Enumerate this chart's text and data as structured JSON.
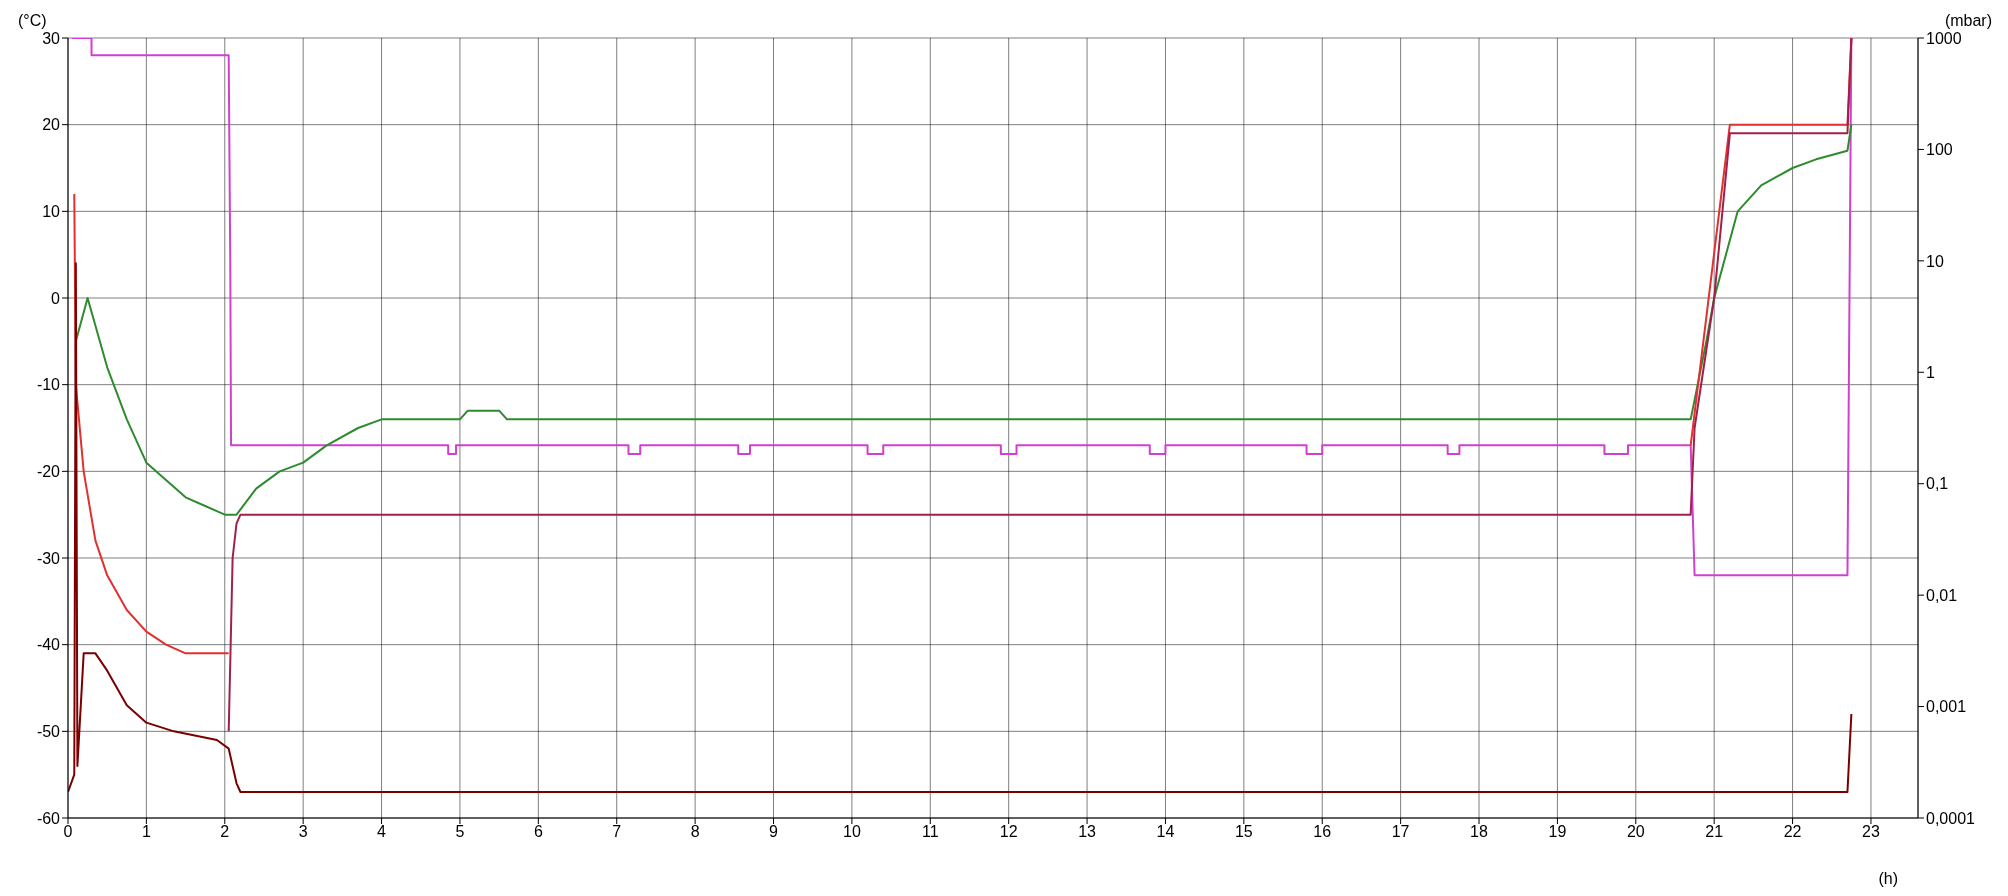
{
  "chart_data": {
    "type": "line",
    "ylabel": "(°C)",
    "y2label": "(mbar)",
    "xlabel": "(h)",
    "xlim": [
      0,
      23.6
    ],
    "xticks": [
      0,
      1,
      2,
      3,
      4,
      5,
      6,
      7,
      8,
      9,
      10,
      11,
      12,
      13,
      14,
      15,
      16,
      17,
      18,
      19,
      20,
      21,
      22,
      23
    ],
    "ylim": [
      -60,
      30
    ],
    "yticks": [
      -60,
      -50,
      -40,
      -30,
      -20,
      -10,
      0,
      10,
      20,
      30
    ],
    "y2lim": [
      0.0001,
      1000
    ],
    "y2ticks": [
      {
        "value": 0.0001,
        "label": "0,0001"
      },
      {
        "value": 0.001,
        "label": "0,001"
      },
      {
        "value": 0.01,
        "label": "0,01"
      },
      {
        "value": 0.1,
        "label": "0,1"
      },
      1,
      10,
      100,
      1000
    ],
    "log": "y2",
    "grid": true,
    "legend": false,
    "marker": "none",
    "line_style": "solid",
    "series": [
      {
        "color": "#d040d0",
        "x": [
          0.05,
          0.3,
          0.3,
          2.05,
          2.07,
          2.08,
          4.0,
          4.0,
          4.85,
          4.85,
          4.95,
          4.95,
          7.15,
          7.15,
          7.3,
          7.3,
          8.55,
          8.55,
          8.7,
          8.7,
          10.2,
          10.2,
          10.4,
          10.4,
          11.9,
          11.9,
          12.1,
          12.1,
          13.8,
          13.8,
          14.0,
          14.0,
          15.8,
          15.8,
          16.0,
          16.0,
          17.6,
          17.6,
          17.75,
          17.75,
          19.6,
          19.6,
          19.9,
          19.9,
          20.7,
          20.75,
          22.7,
          22.75
        ],
        "values": [
          30,
          30,
          28,
          28,
          4,
          -17,
          -17,
          -17,
          -17,
          -18,
          -18,
          -17,
          -17,
          -18,
          -18,
          -17,
          -17,
          -18,
          -18,
          -17,
          -17,
          -18,
          -18,
          -17,
          -17,
          -18,
          -18,
          -17,
          -17,
          -18,
          -18,
          -17,
          -17,
          -18,
          -18,
          -17,
          -17,
          -18,
          -18,
          -17,
          -17,
          -18,
          -18,
          -17,
          -17,
          -32,
          -32,
          30
        ]
      },
      {
        "color": "#2e8b2e",
        "x": [
          0.1,
          0.25,
          0.5,
          0.75,
          1.0,
          1.25,
          1.5,
          1.75,
          2.0,
          2.15,
          2.4,
          2.7,
          3.0,
          3.3,
          3.7,
          4.0,
          5.0,
          5.1,
          5.5,
          5.6,
          20.7,
          20.9,
          21.0,
          21.3,
          21.6,
          22.0,
          22.3,
          22.7,
          22.75
        ],
        "values": [
          -5,
          0,
          -8,
          -14,
          -19,
          -21,
          -23,
          -24,
          -25,
          -25,
          -22,
          -20,
          -19,
          -17,
          -15,
          -14,
          -14,
          -13,
          -13,
          -14,
          -14,
          -5,
          0,
          10,
          13,
          15,
          16,
          17,
          20
        ]
      },
      {
        "color": "#e03030",
        "x": [
          0.08,
          0.1,
          0.2,
          0.35,
          0.5,
          0.75,
          1.0,
          1.25,
          1.5,
          2.0,
          2.05,
          10,
          20.7,
          21.2,
          22.7,
          22.75
        ],
        "values": [
          12,
          -10,
          -20,
          -28,
          -32,
          -36,
          -38.5,
          -40,
          -41,
          -41,
          -41,
          null,
          -17,
          20,
          20,
          30
        ]
      },
      {
        "color": "#a0204a",
        "x": [
          2.05,
          2.1,
          2.15,
          2.2,
          20.7,
          20.75,
          21.0,
          21.2,
          22.7,
          22.75
        ],
        "values": [
          -50,
          -30,
          -26,
          -25,
          -25,
          -15,
          0,
          19,
          19,
          30
        ]
      },
      {
        "color": "#7a0000",
        "x": [
          0,
          0.08,
          0.1,
          0.12,
          0.2,
          0.35,
          0.5,
          0.75,
          1.0,
          1.35,
          1.9,
          2.05,
          2.15,
          2.2,
          22.7,
          22.75
        ],
        "values": [
          -57,
          -55,
          4,
          -54,
          -41,
          -41,
          -43,
          -47,
          -49,
          -50,
          -51,
          -52,
          -56,
          -57,
          -57,
          -48
        ]
      }
    ]
  }
}
